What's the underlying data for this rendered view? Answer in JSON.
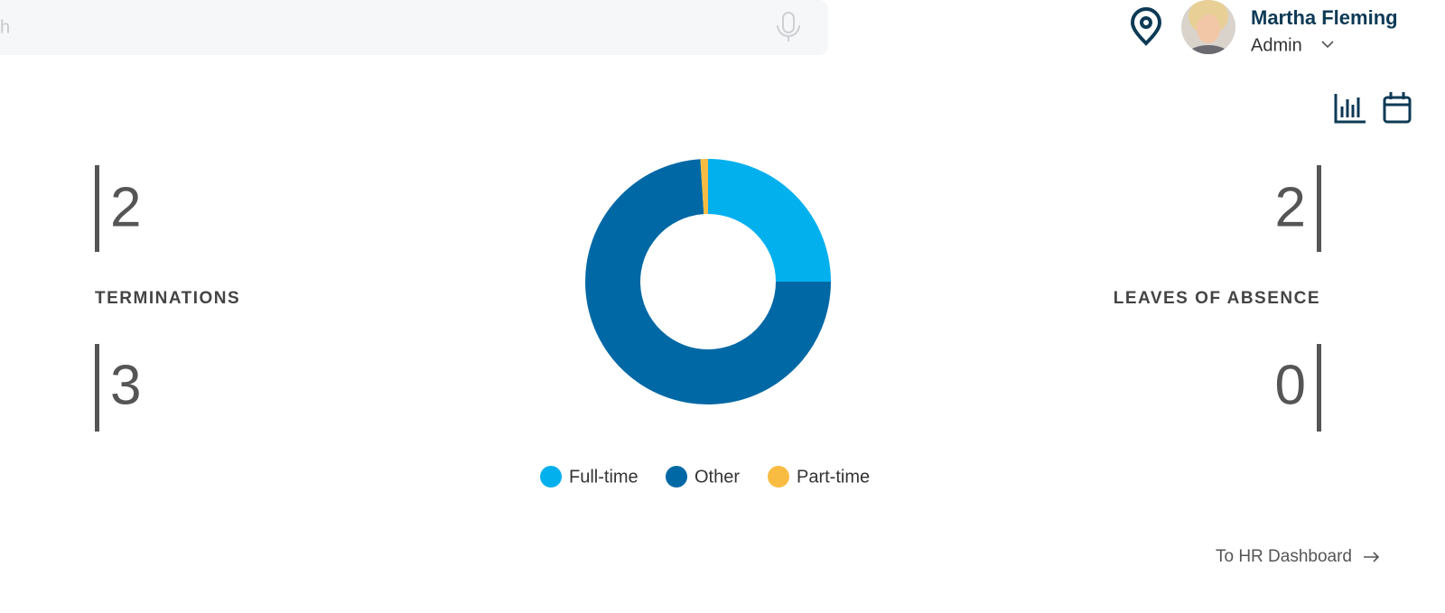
{
  "search": {
    "placeholder": "h"
  },
  "user": {
    "name": "Martha Fleming",
    "role": "Admin"
  },
  "stats": {
    "left": {
      "label": "TERMINATIONS",
      "values": [
        2,
        3
      ]
    },
    "right": {
      "label": "LEAVES OF ABSENCE",
      "values": [
        2,
        0
      ]
    }
  },
  "chart_data": {
    "type": "donut",
    "categories": [
      "Full-time",
      "Other",
      "Part-time"
    ],
    "values": [
      25,
      74,
      1
    ],
    "colors": [
      "#03b0ee",
      "#0068a5",
      "#f9bc42"
    ]
  },
  "footer": {
    "link": "To HR Dashboard"
  }
}
